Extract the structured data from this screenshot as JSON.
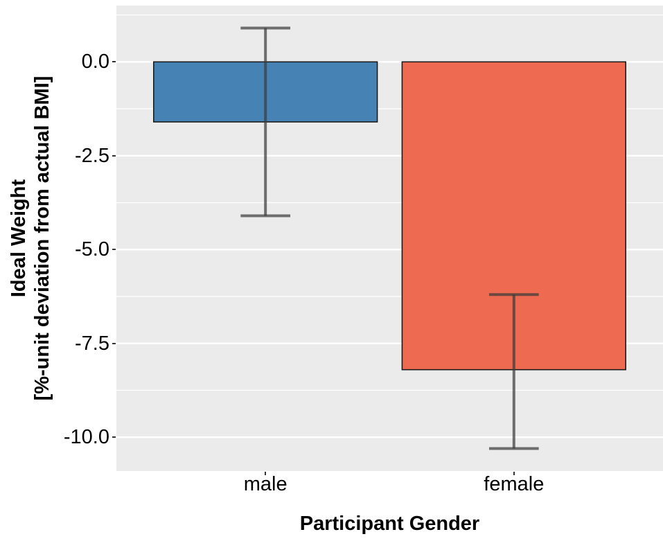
{
  "chart_data": {
    "type": "bar",
    "orientation": "vertical",
    "xlabel": "Participant Gender",
    "ylabel_lines": [
      "Ideal Weight",
      "[%-unit deviation from actual BMI]"
    ],
    "categories": [
      "male",
      "female"
    ],
    "values": [
      -1.6,
      -8.2
    ],
    "error_bars": [
      {
        "category": "male",
        "upper": 0.9,
        "lower": -4.1
      },
      {
        "category": "female",
        "upper": -6.2,
        "lower": -10.3
      }
    ],
    "bar_colors": [
      "#4682B4",
      "#EE6A50"
    ],
    "bar_border_color": "#1A1A1A",
    "errorbar_color": "#3C3C3C",
    "errorbar_opacity": 0.72,
    "ylim": [
      -10.9,
      1.5
    ],
    "yticks": [
      {
        "value": 0.0,
        "label": "0.0"
      },
      {
        "value": -2.5,
        "label": "-2.5"
      },
      {
        "value": -5.0,
        "label": "-5.0"
      },
      {
        "value": -7.5,
        "label": "-7.5"
      },
      {
        "value": -10.0,
        "label": "-10.0"
      }
    ],
    "yticks_minor": [
      1.25,
      -1.25,
      -3.75,
      -6.25,
      -8.75
    ],
    "xlim_band": [
      0.4,
      2.6
    ],
    "bar_width_units": 0.9,
    "cap_width_units": 0.2,
    "panel_background": "#EBEBEB",
    "grid_major_color": "#FFFFFF",
    "grid_minor_color": "#FFFFFF",
    "legend": "none",
    "grid": "on"
  }
}
